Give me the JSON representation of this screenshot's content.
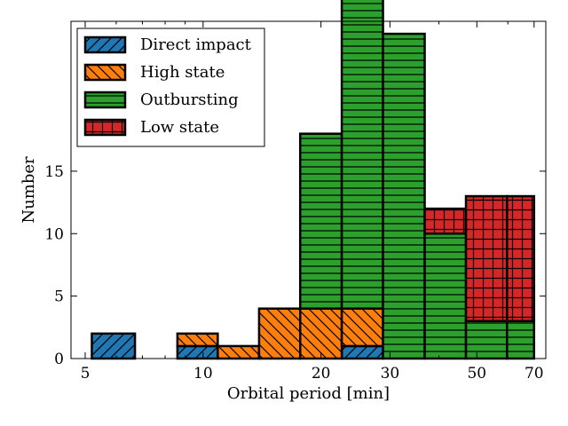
{
  "chart_data": {
    "type": "histogram",
    "xscale": "log",
    "xlabel": "Orbital period [min]",
    "ylabel": "Number",
    "xlim": [
      4.6,
      75
    ],
    "ylim": [
      0,
      27
    ],
    "x_ticks": [
      {
        "value": 5,
        "label": "5"
      },
      {
        "value": 10,
        "label": "10"
      },
      {
        "value": 20,
        "label": "20"
      },
      {
        "value": 30,
        "label": "30"
      },
      {
        "value": 50,
        "label": "50"
      },
      {
        "value": 70,
        "label": "70"
      }
    ],
    "y_ticks": [
      {
        "value": 0,
        "label": "0"
      },
      {
        "value": 5,
        "label": "5"
      },
      {
        "value": 10,
        "label": "10"
      },
      {
        "value": 15,
        "label": "15"
      }
    ],
    "bin_edges": [
      5.2,
      6.7,
      8.6,
      10.9,
      13.9,
      17.7,
      22.6,
      28.8,
      36.8,
      46.9,
      59.7,
      70
    ],
    "stacked": true,
    "series": [
      {
        "name": "Direct impact",
        "color": "#1f77b4",
        "hatch": "diagonal",
        "counts": [
          2,
          0,
          1,
          0,
          0,
          0,
          1,
          0,
          0,
          0,
          0
        ]
      },
      {
        "name": "High state",
        "color": "#ff7f0e",
        "hatch": "back-diagonal",
        "counts": [
          0,
          0,
          1,
          1,
          4,
          4,
          3,
          0,
          0,
          0,
          0
        ]
      },
      {
        "name": "Outbursting",
        "color": "#2ca02c",
        "hatch": "horizontal",
        "counts": [
          0,
          0,
          0,
          0,
          0,
          14,
          26,
          26,
          10,
          3,
          3
        ]
      },
      {
        "name": "Low state",
        "color": "#d62728",
        "hatch": "grid",
        "counts": [
          0,
          0,
          0,
          0,
          0,
          0,
          0,
          0,
          2,
          10,
          10
        ]
      }
    ],
    "legend": {
      "position": "top-left"
    }
  }
}
